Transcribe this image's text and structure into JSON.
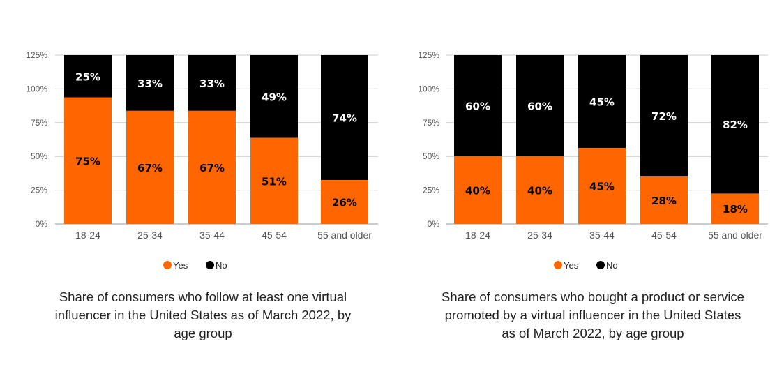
{
  "colors": {
    "yes": "#ff6600",
    "no": "#000000",
    "grid": "#cccccc",
    "tick_text": "#555555"
  },
  "chart_data": [
    {
      "type": "bar",
      "stacked": true,
      "title": "Share of consumers who follow at least one virtual influencer in the United States as of March 2022, by age group",
      "categories": [
        "18-24",
        "25-34",
        "35-44",
        "45-54",
        "55 and older"
      ],
      "series": [
        {
          "name": "Yes",
          "values": [
            75,
            67,
            67,
            51,
            26
          ],
          "labels": [
            "75%",
            "67%",
            "67%",
            "51%",
            "26%"
          ]
        },
        {
          "name": "No",
          "values": [
            25,
            33,
            33,
            49,
            74
          ],
          "labels": [
            "25%",
            "33%",
            "33%",
            "49%",
            "74%"
          ]
        }
      ],
      "yticks": [
        "0%",
        "25%",
        "50%",
        "75%",
        "100%",
        "125%"
      ],
      "ylim": [
        0,
        125
      ],
      "grid": true,
      "legend": "bottom"
    },
    {
      "type": "bar",
      "stacked": true,
      "title": "Share of consumers who bought a product or service promoted by a virtual influencer in the United States as of March 2022, by age group",
      "categories": [
        "18-24",
        "25-34",
        "35-44",
        "45-54",
        "55 and older"
      ],
      "series": [
        {
          "name": "Yes",
          "values": [
            40,
            40,
            45,
            28,
            18
          ],
          "labels": [
            "40%",
            "40%",
            "45%",
            "28%",
            "18%"
          ]
        },
        {
          "name": "No",
          "values": [
            60,
            60,
            45,
            72,
            82
          ],
          "labels": [
            "60%",
            "60%",
            "45%",
            "72%",
            "82%"
          ]
        }
      ],
      "yticks": [
        "0%",
        "25%",
        "50%",
        "75%",
        "100%",
        "125%"
      ],
      "ylim": [
        0,
        125
      ],
      "grid": true,
      "legend": "bottom"
    }
  ]
}
